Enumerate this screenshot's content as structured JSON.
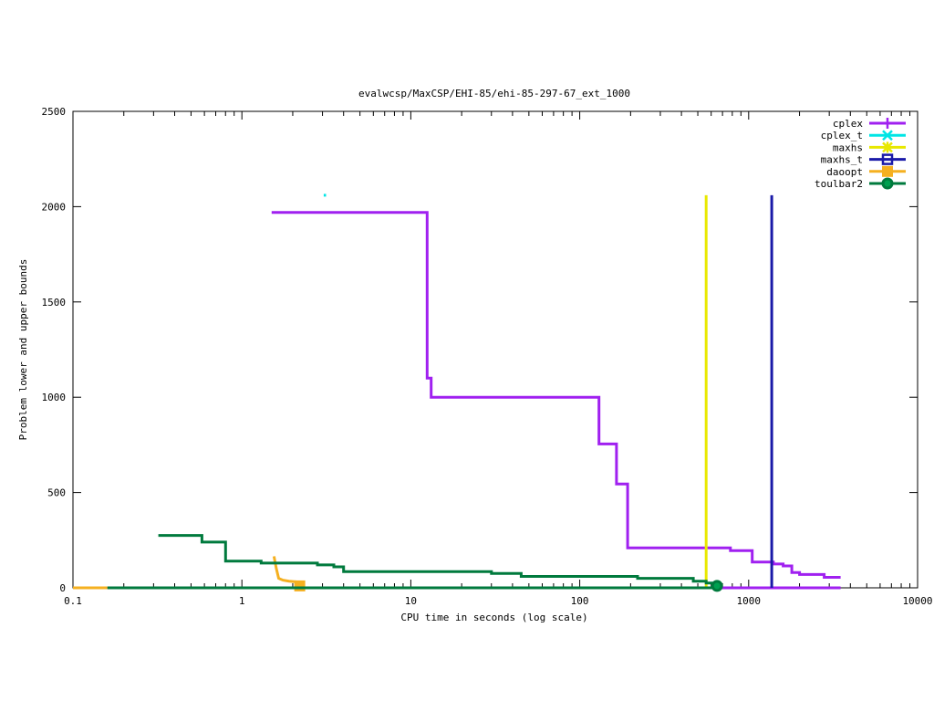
{
  "chart_data": {
    "type": "line",
    "title": "evalwcsp/MaxCSP/EHI-85/ehi-85-297-67_ext_1000",
    "xlabel": "CPU time in seconds (log scale)",
    "ylabel": "Problem lower and upper bounds",
    "xscale": "log",
    "xlim": [
      0.1,
      10000
    ],
    "ylim": [
      0,
      2500
    ],
    "xticks": [
      0.1,
      1,
      10,
      100,
      1000,
      10000
    ],
    "xtick_labels": [
      "0.1",
      "1",
      "10",
      "100",
      "1000",
      "10000"
    ],
    "yticks": [
      0,
      500,
      1000,
      1500,
      2000,
      2500
    ],
    "ytick_labels": [
      "0",
      "500",
      "1000",
      "1500",
      "2000",
      "2500"
    ],
    "grid": false,
    "legend_position": "top-right",
    "series": [
      {
        "name": "cplex",
        "color": "#a020f0",
        "marker": "plus",
        "segments": [
          [
            [
              1.5,
              1970
            ],
            [
              12.5,
              1970
            ],
            [
              12.5,
              1100
            ],
            [
              13.2,
              1100
            ],
            [
              13.2,
              1000
            ],
            [
              130,
              1000
            ],
            [
              130,
              755
            ],
            [
              165,
              755
            ],
            [
              165,
              545
            ],
            [
              192,
              545
            ],
            [
              192,
              210
            ],
            [
              780,
              210
            ],
            [
              780,
              195
            ],
            [
              1050,
              195
            ],
            [
              1050,
              135
            ],
            [
              1400,
              135
            ],
            [
              1400,
              125
            ],
            [
              1600,
              125
            ],
            [
              1600,
              115
            ],
            [
              1800,
              115
            ],
            [
              1800,
              80
            ],
            [
              2000,
              80
            ],
            [
              2000,
              70
            ],
            [
              2800,
              70
            ],
            [
              2800,
              55
            ],
            [
              3500,
              55
            ]
          ],
          [
            [
              0.16,
              0
            ],
            [
              3500,
              0
            ]
          ]
        ]
      },
      {
        "name": "cplex_t",
        "color": "#00e5e5",
        "marker": "cross",
        "segments": [
          [
            [
              3.05,
              2060
            ],
            [
              3.15,
              2060
            ]
          ]
        ]
      },
      {
        "name": "maxhs",
        "color": "#e8e800",
        "marker": "star",
        "segments": [
          [
            [
              560,
              2060
            ],
            [
              560,
              0
            ]
          ]
        ]
      },
      {
        "name": "maxhs_t",
        "color": "#1a1aa8",
        "marker": "open-square",
        "segments": [
          [
            [
              1370,
              2060
            ],
            [
              1370,
              0
            ]
          ]
        ]
      },
      {
        "name": "daoopt",
        "color": "#f5b020",
        "marker": "filled-square",
        "segments": [
          [
            [
              1.55,
              165
            ],
            [
              1.6,
              100
            ],
            [
              1.65,
              50
            ],
            [
              1.75,
              40
            ],
            [
              1.9,
              35
            ],
            [
              2.2,
              30
            ],
            [
              2.2,
              0
            ]
          ],
          [
            [
              0.1,
              0
            ],
            [
              0.16,
              0
            ]
          ]
        ],
        "end_marker": [
          2.2,
          10
        ]
      },
      {
        "name": "toulbar2",
        "color": "#007a3d",
        "marker": "open-circle",
        "segments": [
          [
            [
              0.32,
              275
            ],
            [
              0.58,
              275
            ],
            [
              0.58,
              240
            ],
            [
              0.8,
              240
            ],
            [
              0.8,
              140
            ],
            [
              1.3,
              140
            ],
            [
              1.3,
              130
            ],
            [
              2.8,
              130
            ],
            [
              2.8,
              120
            ],
            [
              3.5,
              120
            ],
            [
              3.5,
              110
            ],
            [
              4,
              110
            ],
            [
              4,
              85
            ],
            [
              30,
              85
            ],
            [
              30,
              75
            ],
            [
              45,
              75
            ],
            [
              45,
              60
            ],
            [
              220,
              60
            ],
            [
              220,
              50
            ],
            [
              470,
              50
            ],
            [
              470,
              35
            ],
            [
              560,
              35
            ],
            [
              560,
              25
            ],
            [
              650,
              25
            ],
            [
              650,
              10
            ]
          ],
          [
            [
              0.16,
              0
            ],
            [
              650,
              0
            ]
          ]
        ],
        "end_marker": [
          650,
          10
        ]
      }
    ]
  }
}
